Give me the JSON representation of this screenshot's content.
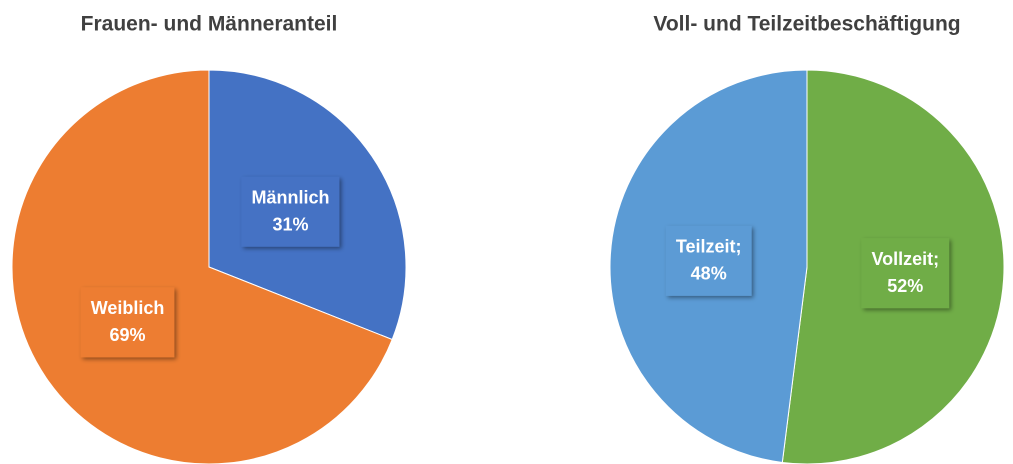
{
  "chart_data": [
    {
      "type": "pie",
      "title": "Frauen- und Männeranteil",
      "categories": [
        "Männlich",
        "Weiblich"
      ],
      "values": [
        31,
        69
      ],
      "value_labels": [
        "31%",
        "69%"
      ],
      "colors": [
        "#4472c4",
        "#ed7d31"
      ]
    },
    {
      "type": "pie",
      "title": "Voll- und Teilzeitbeschäftigung",
      "categories": [
        "Vollzeit;",
        "Teilzeit;"
      ],
      "values": [
        52,
        48
      ],
      "value_labels": [
        "52%",
        "48%"
      ],
      "colors": [
        "#70ad47",
        "#5b9bd5"
      ]
    }
  ]
}
